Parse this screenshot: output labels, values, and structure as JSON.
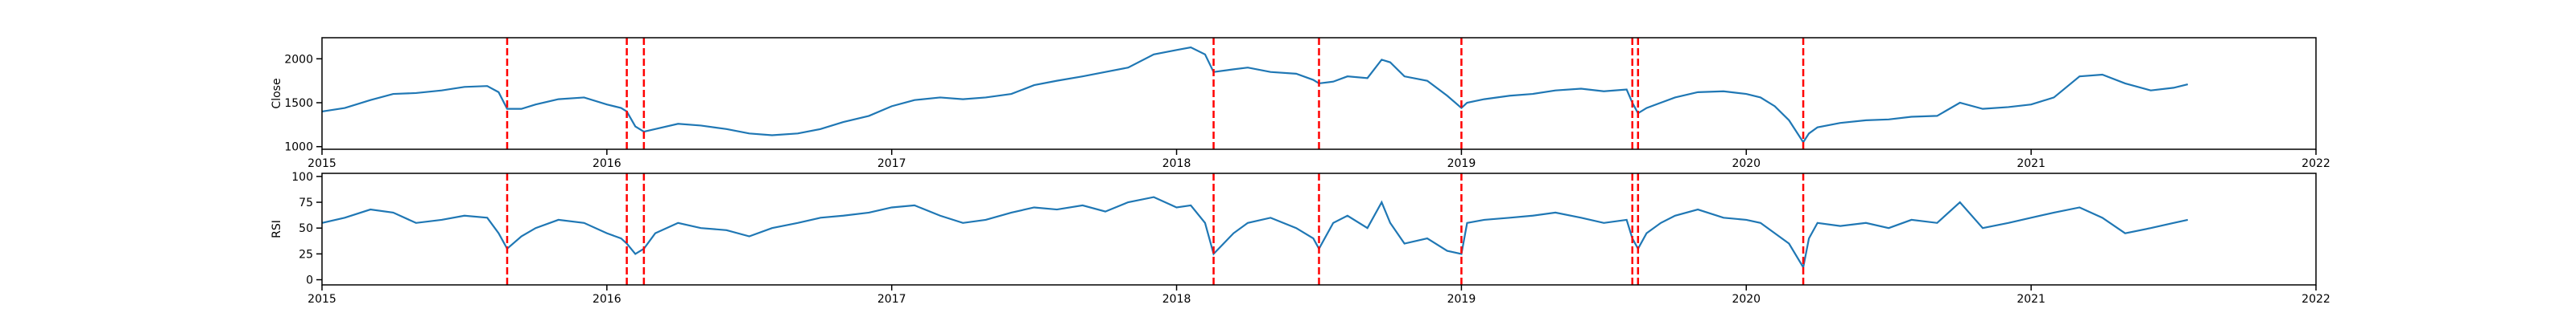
{
  "chart_data": [
    {
      "type": "line",
      "ylabel": "Close",
      "x": [
        2015.0,
        2015.08,
        2015.17,
        2015.25,
        2015.33,
        2015.42,
        2015.5,
        2015.58,
        2015.62,
        2015.65,
        2015.7,
        2015.75,
        2015.83,
        2015.92,
        2016.0,
        2016.05,
        2016.07,
        2016.1,
        2016.13,
        2016.17,
        2016.25,
        2016.33,
        2016.42,
        2016.5,
        2016.58,
        2016.67,
        2016.75,
        2016.83,
        2016.92,
        2017.0,
        2017.08,
        2017.17,
        2017.25,
        2017.33,
        2017.42,
        2017.5,
        2017.58,
        2017.67,
        2017.75,
        2017.83,
        2017.92,
        2018.0,
        2018.05,
        2018.1,
        2018.13,
        2018.2,
        2018.25,
        2018.33,
        2018.42,
        2018.48,
        2018.5,
        2018.55,
        2018.6,
        2018.67,
        2018.72,
        2018.75,
        2018.8,
        2018.88,
        2018.95,
        2019.0,
        2019.02,
        2019.08,
        2019.17,
        2019.25,
        2019.33,
        2019.42,
        2019.5,
        2019.58,
        2019.6,
        2019.62,
        2019.65,
        2019.7,
        2019.75,
        2019.83,
        2019.92,
        2020.0,
        2020.05,
        2020.1,
        2020.15,
        2020.2,
        2020.22,
        2020.25,
        2020.33,
        2020.42,
        2020.5,
        2020.58,
        2020.67,
        2020.75,
        2020.83,
        2020.92,
        2021.0,
        2021.08,
        2021.17,
        2021.25,
        2021.33,
        2021.42,
        2021.5,
        2021.55
      ],
      "series": [
        {
          "name": "Close",
          "color": "#1f77b4",
          "values": [
            1400,
            1440,
            1530,
            1600,
            1610,
            1640,
            1680,
            1690,
            1620,
            1430,
            1430,
            1480,
            1540,
            1560,
            1480,
            1440,
            1400,
            1230,
            1170,
            1200,
            1260,
            1240,
            1200,
            1150,
            1130,
            1150,
            1200,
            1280,
            1350,
            1460,
            1530,
            1560,
            1540,
            1560,
            1600,
            1700,
            1750,
            1800,
            1850,
            1900,
            2050,
            2100,
            2130,
            2050,
            1850,
            1880,
            1900,
            1850,
            1830,
            1760,
            1720,
            1740,
            1800,
            1780,
            1990,
            1960,
            1800,
            1750,
            1580,
            1440,
            1500,
            1540,
            1580,
            1600,
            1640,
            1660,
            1630,
            1650,
            1500,
            1380,
            1440,
            1500,
            1560,
            1620,
            1630,
            1600,
            1560,
            1460,
            1300,
            1050,
            1150,
            1220,
            1270,
            1300,
            1310,
            1340,
            1350,
            1500,
            1430,
            1450,
            1480,
            1560,
            1800,
            1820,
            1720,
            1640,
            1670,
            1710
          ]
        }
      ],
      "vlines": [
        2015.65,
        2016.07,
        2016.13,
        2018.13,
        2018.5,
        2019.0,
        2019.6,
        2019.62,
        2020.2
      ],
      "vline_color": "#ff0000",
      "xlim": [
        2015,
        2022
      ],
      "xticks": [
        2015,
        2016,
        2017,
        2018,
        2019,
        2020,
        2021,
        2022
      ],
      "ylim": [
        970,
        2240
      ],
      "yticks": [
        1000,
        1500,
        2000
      ]
    },
    {
      "type": "line",
      "ylabel": "RSI",
      "x": [
        2015.0,
        2015.08,
        2015.17,
        2015.25,
        2015.33,
        2015.42,
        2015.5,
        2015.58,
        2015.62,
        2015.65,
        2015.7,
        2015.75,
        2015.83,
        2015.92,
        2016.0,
        2016.05,
        2016.07,
        2016.1,
        2016.13,
        2016.17,
        2016.25,
        2016.33,
        2016.42,
        2016.5,
        2016.58,
        2016.67,
        2016.75,
        2016.83,
        2016.92,
        2017.0,
        2017.08,
        2017.17,
        2017.25,
        2017.33,
        2017.42,
        2017.5,
        2017.58,
        2017.67,
        2017.75,
        2017.83,
        2017.92,
        2018.0,
        2018.05,
        2018.1,
        2018.13,
        2018.2,
        2018.25,
        2018.33,
        2018.42,
        2018.48,
        2018.5,
        2018.55,
        2018.6,
        2018.67,
        2018.72,
        2018.75,
        2018.8,
        2018.88,
        2018.95,
        2019.0,
        2019.02,
        2019.08,
        2019.17,
        2019.25,
        2019.33,
        2019.42,
        2019.5,
        2019.58,
        2019.6,
        2019.62,
        2019.65,
        2019.7,
        2019.75,
        2019.83,
        2019.92,
        2020.0,
        2020.05,
        2020.1,
        2020.15,
        2020.2,
        2020.22,
        2020.25,
        2020.33,
        2020.42,
        2020.5,
        2020.58,
        2020.67,
        2020.75,
        2020.83,
        2020.92,
        2021.0,
        2021.08,
        2021.17,
        2021.25,
        2021.33,
        2021.42,
        2021.5,
        2021.55
      ],
      "series": [
        {
          "name": "RSI",
          "color": "#1f77b4",
          "values": [
            55,
            60,
            68,
            65,
            55,
            58,
            62,
            60,
            45,
            30,
            42,
            50,
            58,
            55,
            45,
            40,
            35,
            25,
            30,
            45,
            55,
            50,
            48,
            42,
            50,
            55,
            60,
            62,
            65,
            70,
            72,
            62,
            55,
            58,
            65,
            70,
            68,
            72,
            66,
            75,
            80,
            70,
            72,
            55,
            25,
            45,
            55,
            60,
            50,
            40,
            30,
            55,
            62,
            50,
            75,
            55,
            35,
            40,
            28,
            25,
            55,
            58,
            60,
            62,
            65,
            60,
            55,
            58,
            40,
            30,
            45,
            55,
            62,
            68,
            60,
            58,
            55,
            45,
            35,
            12,
            40,
            55,
            52,
            55,
            50,
            58,
            55,
            75,
            50,
            55,
            60,
            65,
            70,
            60,
            45,
            50,
            55,
            58
          ]
        }
      ],
      "vlines": [
        2015.65,
        2016.07,
        2016.13,
        2018.13,
        2018.5,
        2019.0,
        2019.6,
        2019.62,
        2020.2
      ],
      "vline_color": "#ff0000",
      "xlim": [
        2015,
        2022
      ],
      "xticks": [
        2015,
        2016,
        2017,
        2018,
        2019,
        2020,
        2021,
        2022
      ],
      "ylim": [
        -5,
        103
      ],
      "yticks": [
        0,
        25,
        50,
        75,
        100
      ]
    }
  ]
}
